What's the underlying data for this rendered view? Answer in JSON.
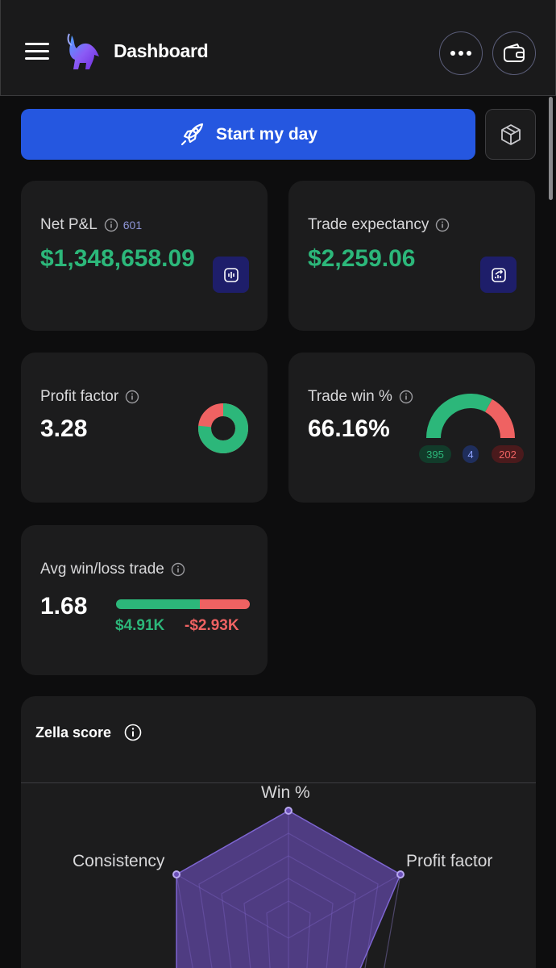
{
  "header": {
    "title": "Dashboard",
    "menu_icon": "hamburger-icon",
    "logo_icon": "bull-logo",
    "more_icon": "more-horizontal-icon",
    "wallet_icon": "wallet-icon"
  },
  "actions": {
    "start_label": "Start my day",
    "start_icon": "rocket-icon",
    "cube_icon": "cube-icon"
  },
  "cards": {
    "net_pnl": {
      "label": "Net P&L",
      "count": "601",
      "value": "$1,348,658.09",
      "icon": "chart-bars-icon"
    },
    "trade_expectancy": {
      "label": "Trade expectancy",
      "value": "$2,259.06",
      "icon": "trend-up-icon"
    },
    "profit_factor": {
      "label": "Profit factor",
      "value": "3.28",
      "donut_win_fraction": 0.766
    },
    "trade_win": {
      "label": "Trade win %",
      "value": "66.16%",
      "wins": "395",
      "breakeven": "4",
      "losses": "202",
      "win_fraction": 0.6616
    },
    "avg_win_loss": {
      "label": "Avg win/loss trade",
      "value": "1.68",
      "avg_win": "$4.91K",
      "avg_loss": "-$2.93K",
      "win_bar_fraction": 0.626
    }
  },
  "zella": {
    "title": "Zella score",
    "axes": [
      "Win %",
      "Profit factor",
      "Consistency"
    ]
  },
  "colors": {
    "green": "#2cb77a",
    "red": "#ef6262",
    "accent_blue": "#2557e0",
    "radar_purple": "#6b4fb8"
  }
}
